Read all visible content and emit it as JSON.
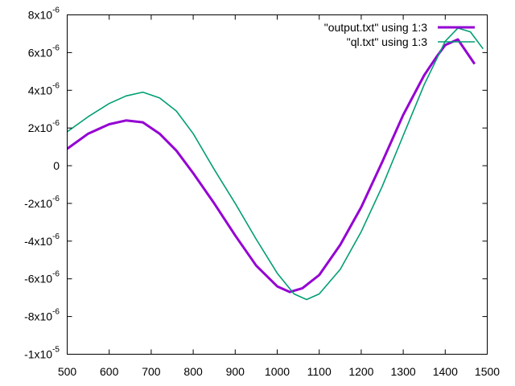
{
  "chart_data": {
    "type": "line",
    "title": "",
    "xlabel": "",
    "ylabel": "",
    "xlim": [
      500,
      1500
    ],
    "ylim": [
      -1e-05,
      8e-06
    ],
    "x_ticks": [
      500,
      600,
      700,
      800,
      900,
      1000,
      1100,
      1200,
      1300,
      1400,
      1500
    ],
    "y_ticks": [
      {
        "value": 8e-06,
        "mantissa": "8x10",
        "exp": "-6"
      },
      {
        "value": 6e-06,
        "mantissa": "6x10",
        "exp": "-6"
      },
      {
        "value": 4e-06,
        "mantissa": "4x10",
        "exp": "-6"
      },
      {
        "value": 2e-06,
        "mantissa": "2x10",
        "exp": "-6"
      },
      {
        "value": 0,
        "mantissa": "0",
        "exp": ""
      },
      {
        "value": -2e-06,
        "mantissa": "-2x10",
        "exp": "-6"
      },
      {
        "value": -4e-06,
        "mantissa": "-4x10",
        "exp": "-6"
      },
      {
        "value": -6e-06,
        "mantissa": "-6x10",
        "exp": "-6"
      },
      {
        "value": -8e-06,
        "mantissa": "-8x10",
        "exp": "-6"
      },
      {
        "value": -1e-05,
        "mantissa": "-1x10",
        "exp": "-5"
      }
    ],
    "grid": false,
    "legend_position": "top-right",
    "series": [
      {
        "name": "\"output.txt\" using 1:3",
        "color": "#9400d3",
        "x": [
          500,
          550,
          600,
          640,
          680,
          720,
          760,
          800,
          850,
          900,
          950,
          1000,
          1030,
          1060,
          1100,
          1150,
          1200,
          1250,
          1300,
          1350,
          1380,
          1400,
          1430,
          1470
        ],
        "y": [
          9e-07,
          1.7e-06,
          2.2e-06,
          2.4e-06,
          2.3e-06,
          1.7e-06,
          8e-07,
          -4e-07,
          -2e-06,
          -3.7e-06,
          -5.3e-06,
          -6.4e-06,
          -6.7e-06,
          -6.5e-06,
          -5.8e-06,
          -4.2e-06,
          -2.2e-06,
          2e-07,
          2.7e-06,
          4.8e-06,
          5.8e-06,
          6.4e-06,
          6.7e-06,
          5.4e-06
        ]
      },
      {
        "name": "\"ql.txt\" using 1:3",
        "color": "#009e73",
        "x": [
          500,
          550,
          600,
          640,
          680,
          720,
          760,
          800,
          850,
          900,
          950,
          1000,
          1040,
          1070,
          1100,
          1150,
          1200,
          1250,
          1300,
          1350,
          1400,
          1430,
          1460,
          1490
        ],
        "y": [
          1.8e-06,
          2.6e-06,
          3.3e-06,
          3.7e-06,
          3.9e-06,
          3.6e-06,
          2.9e-06,
          1.7e-06,
          -2e-07,
          -2e-06,
          -3.9e-06,
          -5.7e-06,
          -6.8e-06,
          -7.1e-06,
          -6.8e-06,
          -5.5e-06,
          -3.5e-06,
          -1.1e-06,
          1.6e-06,
          4.3e-06,
          6.6e-06,
          7.3e-06,
          7.1e-06,
          6.2e-06
        ]
      }
    ]
  }
}
